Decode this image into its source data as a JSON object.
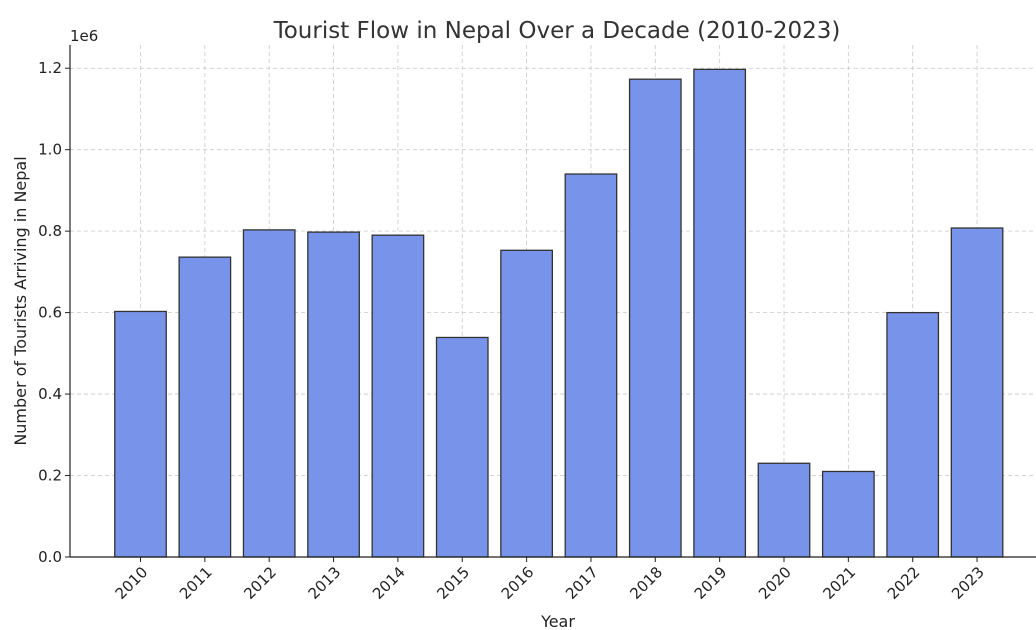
{
  "chart_data": {
    "type": "bar",
    "title": "Tourist Flow in Nepal Over a Decade (2010-2023)",
    "xlabel": "Year",
    "ylabel": "Number of Tourists Arriving in Nepal",
    "y_scale_label": "1e6",
    "categories": [
      "2010",
      "2011",
      "2012",
      "2013",
      "2014",
      "2015",
      "2016",
      "2017",
      "2018",
      "2019",
      "2020",
      "2021",
      "2022",
      "2023"
    ],
    "values": [
      602867,
      736215,
      803092,
      797616,
      790118,
      538970,
      753002,
      940218,
      1173072,
      1197191,
      230085,
      210000,
      600000,
      807700
    ],
    "yticks": [
      "0.0",
      "0.2",
      "0.4",
      "0.6",
      "0.8",
      "1.0",
      "1.2"
    ],
    "ytick_values": [
      0,
      200000,
      400000,
      600000,
      800000,
      1000000,
      1200000
    ],
    "ylim": [
      0,
      1257000
    ],
    "grid": true,
    "colors": {
      "bar": "#7893ea",
      "edge": "#333333"
    }
  }
}
